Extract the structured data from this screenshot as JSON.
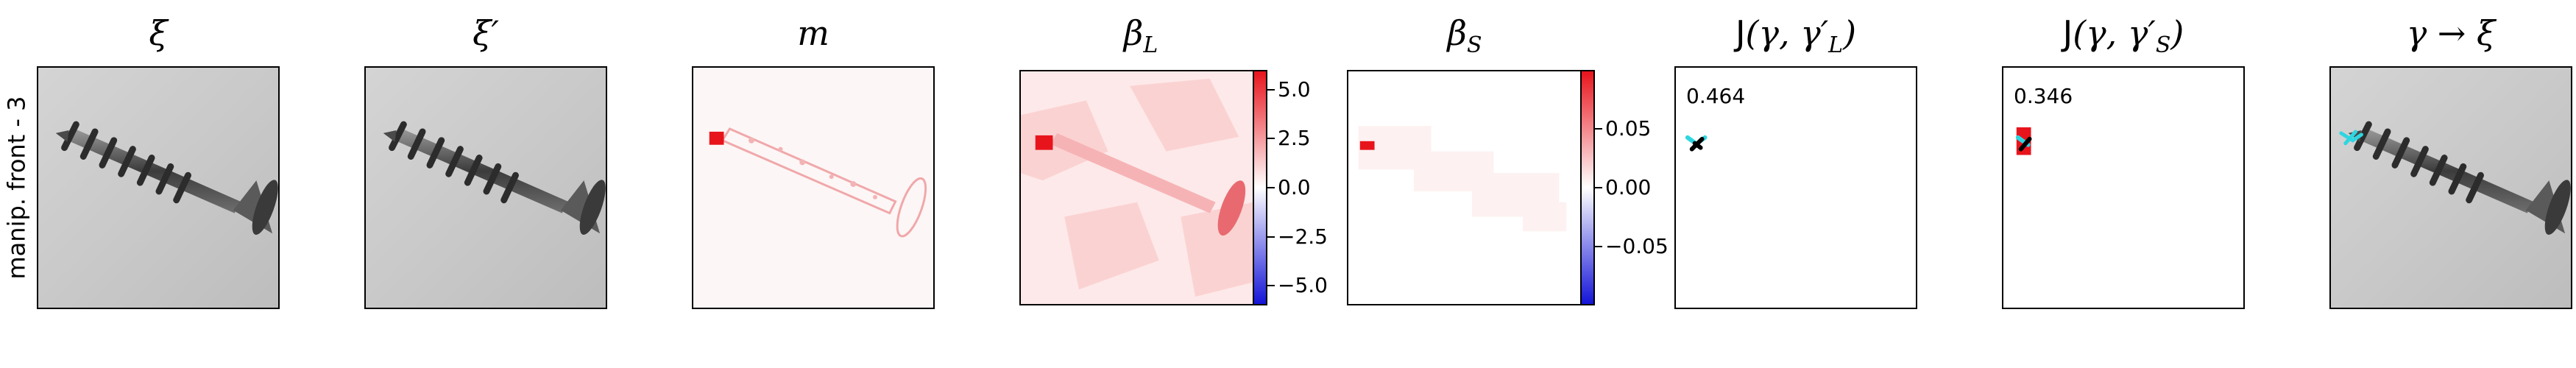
{
  "row_label": "manip. front - 3",
  "panels": [
    {
      "id": "xi",
      "title": "ξ"
    },
    {
      "id": "xi-prime",
      "title": "ξ′"
    },
    {
      "id": "m",
      "title": "m"
    },
    {
      "id": "beta-l",
      "title": "β",
      "title_sub": "L",
      "colorbar": {
        "ticks": [
          "5.0",
          "2.5",
          "0.0",
          "−2.5",
          "−5.0"
        ],
        "min": -6,
        "max": 6,
        "values": [
          5.0,
          2.5,
          0.0,
          -2.5,
          -5.0
        ]
      }
    },
    {
      "id": "beta-s",
      "title": "β",
      "title_sub": "S",
      "colorbar": {
        "ticks": [
          "0.05",
          "0.00",
          "−0.05"
        ],
        "min": -0.1,
        "max": 0.1,
        "values": [
          0.05,
          0.0,
          -0.05
        ]
      }
    },
    {
      "id": "j-l",
      "title_prefix": "J",
      "title": "(γ, γ′",
      "title_sub": "L",
      "title_suffix": ")",
      "score": "0.464"
    },
    {
      "id": "j-s",
      "title_prefix": "J",
      "title": "(γ, γ′",
      "title_sub": "S",
      "title_suffix": ")",
      "score": "0.346"
    },
    {
      "id": "gamma-xi",
      "title": "γ → ξ"
    }
  ],
  "colors": {
    "red": "#e8141c",
    "blue": "#1414d8",
    "cyan": "#2fd6e0",
    "black": "#000000"
  }
}
